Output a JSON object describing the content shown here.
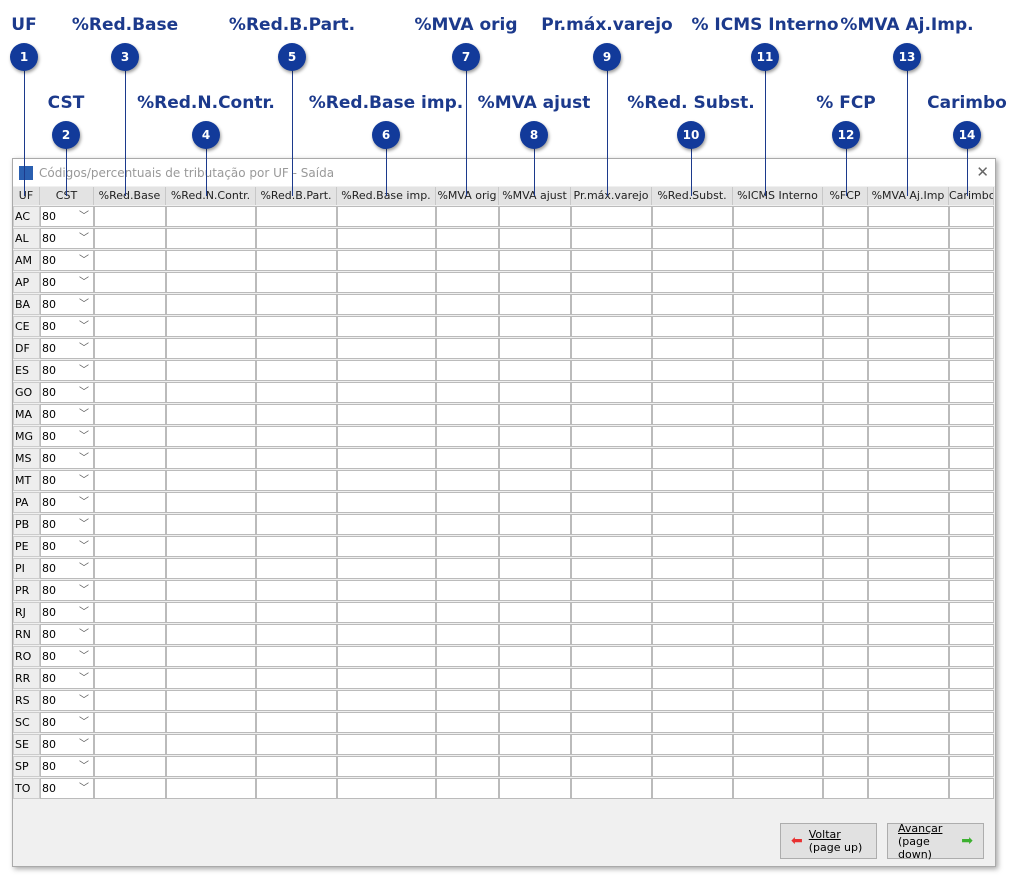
{
  "callouts": [
    {
      "n": "1",
      "label": "UF"
    },
    {
      "n": "2",
      "label": "CST"
    },
    {
      "n": "3",
      "label": "%Red.Base"
    },
    {
      "n": "4",
      "label": "%Red.N.Contr."
    },
    {
      "n": "5",
      "label": "%Red.B.Part."
    },
    {
      "n": "6",
      "label": "%Red.Base imp."
    },
    {
      "n": "7",
      "label": "%MVA orig"
    },
    {
      "n": "8",
      "label": "%MVA ajust"
    },
    {
      "n": "9",
      "label": "Pr.máx.varejo"
    },
    {
      "n": "10",
      "label": "%Red. Subst."
    },
    {
      "n": "11",
      "label": "% ICMS Interno"
    },
    {
      "n": "12",
      "label": "% FCP"
    },
    {
      "n": "13",
      "label": "%MVA Aj.Imp."
    },
    {
      "n": "14",
      "label": "Carimbo"
    }
  ],
  "window": {
    "title": "Códigos/percentuais de tributação por UF - Saída",
    "close": "✕"
  },
  "columns": [
    "UF",
    "CST",
    "%Red.Base",
    "%Red.N.Contr.",
    "%Red.B.Part.",
    "%Red.Base imp.",
    "%MVA orig",
    "%MVA ajust",
    "Pr.máx.varejo",
    "%Red.Subst.",
    "%ICMS Interno",
    "%FCP",
    "%MVA Aj.Imp",
    "Carimbo"
  ],
  "rows": [
    "AC",
    "AL",
    "AM",
    "AP",
    "BA",
    "CE",
    "DF",
    "ES",
    "GO",
    "MA",
    "MG",
    "MS",
    "MT",
    "PA",
    "PB",
    "PE",
    "PI",
    "PR",
    "RJ",
    "RN",
    "RO",
    "RR",
    "RS",
    "SC",
    "SE",
    "SP",
    "TO"
  ],
  "cst_value": "80",
  "buttons": {
    "back": {
      "line1": "Voltar",
      "line2": "(page up)",
      "color": "#e83030"
    },
    "next": {
      "line1": "Avançar",
      "line2": "(page down)",
      "color": "#3cb030"
    }
  }
}
